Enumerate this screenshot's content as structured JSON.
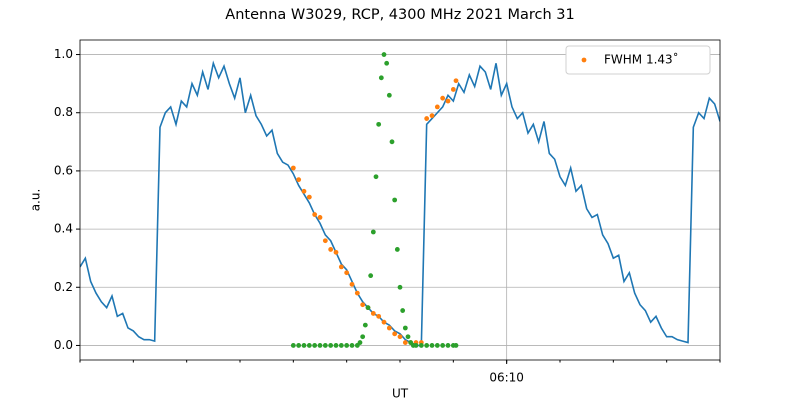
{
  "chart_data": {
    "type": "line",
    "title": "Antenna W3029, RCP, 4300 MHz 2021 March 31",
    "x_label": "UT",
    "y_label": "a.u.",
    "xlim": [
      2,
      14
    ],
    "ylim": [
      -0.05,
      1.05
    ],
    "xticks": [
      {
        "value": 10,
        "label": "06:10"
      }
    ],
    "xminorticks": [
      2,
      3,
      4,
      5,
      6,
      7,
      8,
      9,
      10,
      11,
      12,
      13,
      14
    ],
    "yticks": [
      {
        "value": 0,
        "label": "0.0"
      },
      0.2,
      0.4,
      0.6,
      0.8,
      {
        "value": 1,
        "label": "1.0"
      }
    ],
    "grid": true,
    "legend": "upper right",
    "series": [
      {
        "mode": "line",
        "color": "#1f77b4",
        "x": [
          2.0,
          2.1,
          2.2,
          2.3,
          2.4,
          2.5,
          2.6,
          2.7,
          2.8,
          2.9,
          3.0,
          3.1,
          3.2,
          3.3,
          3.4,
          3.5,
          3.6,
          3.7,
          3.8,
          3.9,
          4.0,
          4.1,
          4.2,
          4.3,
          4.4,
          4.5,
          4.6,
          4.7,
          4.8,
          4.9,
          5.0,
          5.1,
          5.2,
          5.3,
          5.4,
          5.5,
          5.6,
          5.7,
          5.8,
          5.9,
          6.0,
          6.1,
          6.2,
          6.3,
          6.4,
          6.5,
          6.6,
          6.7,
          6.8,
          6.9,
          7.0,
          7.1,
          7.2,
          7.3,
          7.4,
          7.5,
          7.6,
          7.7,
          7.8,
          7.9,
          8.0,
          8.1,
          8.2,
          8.3,
          8.4,
          8.5,
          8.6,
          8.7,
          8.8,
          8.9,
          9.0,
          9.1,
          9.2,
          9.3,
          9.4,
          9.5,
          9.6,
          9.7,
          9.8,
          9.9,
          10.0,
          10.1,
          10.2,
          10.3,
          10.4,
          10.5,
          10.6,
          10.7,
          10.8,
          10.9,
          11.0,
          11.1,
          11.2,
          11.3,
          11.4,
          11.5,
          11.6,
          11.7,
          11.8,
          11.9,
          12.0,
          12.1,
          12.2,
          12.3,
          12.4,
          12.5,
          12.6,
          12.7,
          12.8,
          12.9,
          13.0,
          13.1,
          13.2,
          13.3,
          13.4,
          13.5,
          13.6,
          13.7,
          13.8,
          13.9,
          14.0
        ],
        "values": [
          0.27,
          0.3,
          0.22,
          0.18,
          0.15,
          0.13,
          0.17,
          0.1,
          0.11,
          0.06,
          0.05,
          0.03,
          0.02,
          0.02,
          0.015,
          0.75,
          0.8,
          0.82,
          0.76,
          0.84,
          0.82,
          0.9,
          0.86,
          0.94,
          0.88,
          0.97,
          0.92,
          0.96,
          0.9,
          0.85,
          0.92,
          0.8,
          0.86,
          0.79,
          0.76,
          0.72,
          0.74,
          0.66,
          0.63,
          0.62,
          0.59,
          0.55,
          0.52,
          0.49,
          0.45,
          0.42,
          0.38,
          0.36,
          0.32,
          0.28,
          0.26,
          0.22,
          0.18,
          0.15,
          0.13,
          0.11,
          0.1,
          0.08,
          0.07,
          0.05,
          0.04,
          0.02,
          0.01,
          0.0,
          0.0,
          0.76,
          0.78,
          0.8,
          0.82,
          0.86,
          0.84,
          0.9,
          0.87,
          0.93,
          0.89,
          0.96,
          0.94,
          0.88,
          0.97,
          0.86,
          0.9,
          0.82,
          0.78,
          0.8,
          0.73,
          0.76,
          0.7,
          0.77,
          0.66,
          0.64,
          0.58,
          0.55,
          0.61,
          0.53,
          0.55,
          0.47,
          0.44,
          0.45,
          0.38,
          0.35,
          0.3,
          0.31,
          0.22,
          0.25,
          0.18,
          0.14,
          0.12,
          0.08,
          0.1,
          0.06,
          0.03,
          0.03,
          0.02,
          0.015,
          0.01,
          0.75,
          0.8,
          0.78,
          0.85,
          0.83,
          0.77
        ]
      },
      {
        "mode": "points",
        "name": "FWHM 1.43˚",
        "color": "#ff7f0e",
        "x": [
          6.0,
          6.1,
          6.2,
          6.3,
          6.4,
          6.5,
          6.6,
          6.7,
          6.8,
          6.9,
          7.0,
          7.1,
          7.2,
          7.3,
          7.4,
          7.5,
          7.6,
          7.7,
          7.8,
          7.9,
          8.0,
          8.1,
          8.2,
          8.3,
          8.4,
          8.5,
          8.6,
          8.7,
          8.8,
          8.9,
          9.0,
          9.05
        ],
        "values": [
          0.61,
          0.57,
          0.53,
          0.51,
          0.45,
          0.44,
          0.36,
          0.33,
          0.32,
          0.27,
          0.25,
          0.21,
          0.18,
          0.14,
          0.13,
          0.11,
          0.1,
          0.08,
          0.06,
          0.04,
          0.03,
          0.01,
          0.01,
          0.01,
          0.01,
          0.78,
          0.79,
          0.82,
          0.85,
          0.84,
          0.88,
          0.91
        ]
      },
      {
        "mode": "points",
        "color": "#2ca02c",
        "x": [
          6.0,
          6.1,
          6.2,
          6.3,
          6.4,
          6.5,
          6.6,
          6.7,
          6.8,
          6.9,
          7.0,
          7.1,
          7.2,
          7.25,
          7.3,
          7.35,
          7.4,
          7.45,
          7.5,
          7.55,
          7.6,
          7.65,
          7.7,
          7.75,
          7.8,
          7.85,
          7.9,
          7.95,
          8.0,
          8.05,
          8.1,
          8.15,
          8.2,
          8.25,
          8.3,
          8.4,
          8.5,
          8.6,
          8.7,
          8.8,
          8.9,
          9.0,
          9.05
        ],
        "values": [
          0,
          0,
          0,
          0,
          0,
          0,
          0,
          0,
          0,
          0,
          0,
          0,
          0,
          0.01,
          0.03,
          0.07,
          0.13,
          0.24,
          0.39,
          0.58,
          0.76,
          0.92,
          1.0,
          0.97,
          0.86,
          0.7,
          0.5,
          0.33,
          0.2,
          0.12,
          0.06,
          0.03,
          0.01,
          0,
          0,
          0,
          0,
          0,
          0,
          0,
          0,
          0,
          0
        ]
      }
    ]
  }
}
